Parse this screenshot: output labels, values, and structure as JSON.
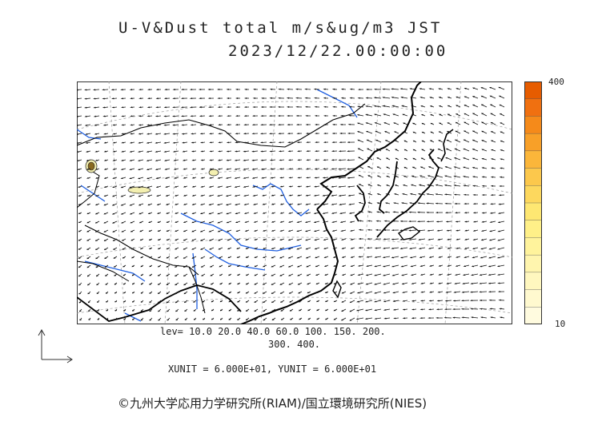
{
  "header": {
    "title": "U-V&Dust total m/s&ug/m3 JST",
    "datetime": "2023/12/22.00:00:00"
  },
  "colorbar": {
    "max_label": "400",
    "min_label": "10",
    "colors": [
      "#e65c00",
      "#f07010",
      "#f58a1a",
      "#f8a028",
      "#fbb63a",
      "#fcc84c",
      "#fdd85e",
      "#fee772",
      "#fff088",
      "#fff39c",
      "#fff5ae",
      "#fff7bf",
      "#fff9cf",
      "#fffbdf"
    ]
  },
  "legend": {
    "levels_line1": "lev= 10.0 20.0 40.0 60.0 100. 150. 200.",
    "levels_line2": "300. 400.",
    "units_line": "XUNIT = 6.000E+01, YUNIT = 6.000E+01"
  },
  "credit": "©九州大学応用力学研究所(RIAM)/国立環境研究所(NIES)",
  "map": {
    "coastline_color": "#000000",
    "river_color": "#1f5fe0",
    "dust_fill_color": "#f3efb0"
  }
}
